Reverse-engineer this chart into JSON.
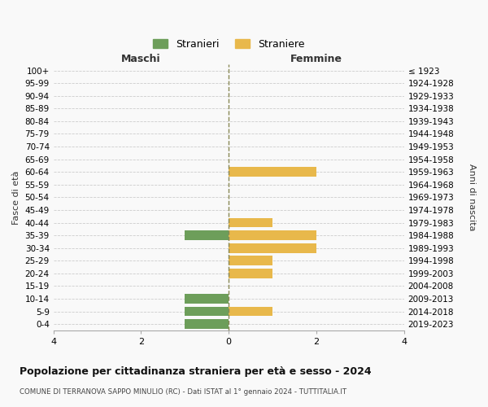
{
  "age_groups": [
    "100+",
    "95-99",
    "90-94",
    "85-89",
    "80-84",
    "75-79",
    "70-74",
    "65-69",
    "60-64",
    "55-59",
    "50-54",
    "45-49",
    "40-44",
    "35-39",
    "30-34",
    "25-29",
    "20-24",
    "15-19",
    "10-14",
    "5-9",
    "0-4"
  ],
  "birth_years": [
    "≤ 1923",
    "1924-1928",
    "1929-1933",
    "1934-1938",
    "1939-1943",
    "1944-1948",
    "1949-1953",
    "1954-1958",
    "1959-1963",
    "1964-1968",
    "1969-1973",
    "1974-1978",
    "1979-1983",
    "1984-1988",
    "1989-1993",
    "1994-1998",
    "1999-2003",
    "2004-2008",
    "2009-2013",
    "2014-2018",
    "2019-2023"
  ],
  "maschi_stranieri": [
    0,
    0,
    0,
    0,
    0,
    0,
    0,
    0,
    0,
    0,
    0,
    0,
    0,
    1,
    0,
    0,
    0,
    0,
    1,
    1,
    1
  ],
  "femmine_straniere": [
    0,
    0,
    0,
    0,
    0,
    0,
    0,
    0,
    2,
    0,
    0,
    0,
    1,
    2,
    2,
    1,
    1,
    0,
    0,
    1,
    0
  ],
  "color_maschi": "#6d9e5a",
  "color_femmine": "#e8b84b",
  "xlim": 4,
  "title": "Popolazione per cittadinanza straniera per età e sesso - 2024",
  "subtitle": "COMUNE DI TERRANOVA SAPPO MINULIO (RC) - Dati ISTAT al 1° gennaio 2024 - TUTTITALIA.IT",
  "left_label": "Maschi",
  "right_label": "Femmine",
  "ylabel_left": "Fasce di età",
  "ylabel_right": "Anni di nascita",
  "legend_stranieri": "Stranieri",
  "legend_straniere": "Straniere",
  "bg_color": "#f9f9f9",
  "grid_color": "#cccccc",
  "bar_height": 0.75
}
